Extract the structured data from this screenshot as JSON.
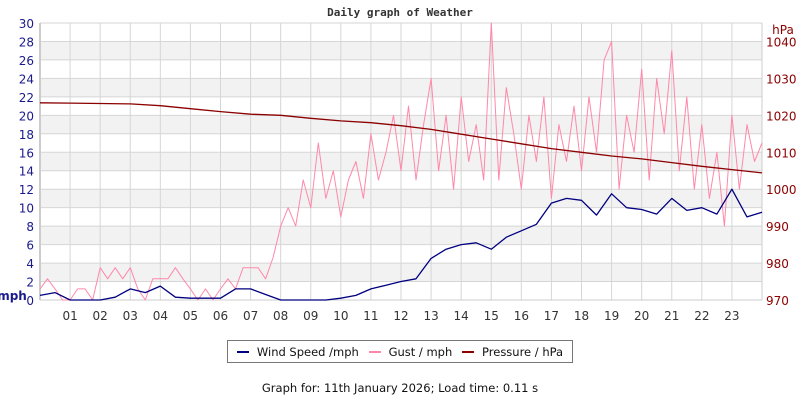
{
  "chart_data": {
    "type": "line",
    "title": "Daily graph of Weather",
    "xlabel": "",
    "ylabel_left": "mph",
    "ylabel_right": "hPa",
    "x_ticks": [
      "01",
      "02",
      "03",
      "04",
      "05",
      "06",
      "07",
      "08",
      "09",
      "10",
      "11",
      "12",
      "13",
      "14",
      "15",
      "16",
      "17",
      "18",
      "19",
      "20",
      "21",
      "22",
      "23"
    ],
    "xlim_hours": [
      0,
      24
    ],
    "ylim_left": [
      0,
      30
    ],
    "y_ticks_left": [
      "0",
      "2",
      "4",
      "6",
      "8",
      "10",
      "12",
      "14",
      "16",
      "18",
      "20",
      "22",
      "24",
      "26",
      "28",
      "30"
    ],
    "ylim_right": [
      970,
      1045
    ],
    "y_ticks_right": [
      "970",
      "980",
      "990",
      "1000",
      "1010",
      "1020",
      "1030",
      "1040"
    ],
    "grid": true,
    "legend_placement": "bottom",
    "series": [
      {
        "name": "Wind Speed /mph",
        "color": "#000080",
        "axis": "left",
        "x_step_hours": 0.5,
        "values": [
          0.5,
          0.8,
          0,
          0,
          0,
          0.3,
          1.2,
          0.8,
          1.5,
          0.3,
          0.2,
          0.2,
          0.2,
          1.2,
          1.2,
          0.6,
          0,
          0,
          0,
          0,
          0.2,
          0.5,
          1.2,
          1.6,
          2,
          2.3,
          4.5,
          5.5,
          6,
          6.2,
          5.5,
          6.8,
          7.5,
          8.2,
          10.5,
          11,
          10.8,
          9.2,
          11.5,
          10,
          9.8,
          9.3,
          11,
          9.7,
          10,
          9.3,
          12,
          9,
          9.5
        ]
      },
      {
        "name": "Gust / mph",
        "color": "#ff88aa",
        "axis": "left",
        "x_step_hours": 0.25,
        "values": [
          1.2,
          2.3,
          1.2,
          0,
          0,
          1.2,
          1.2,
          0,
          3.5,
          2.3,
          3.5,
          2.3,
          3.5,
          1.2,
          0,
          2.3,
          2.3,
          2.3,
          3.5,
          2.3,
          1.2,
          0,
          1.2,
          0,
          1.2,
          2.3,
          1.2,
          3.5,
          3.5,
          3.5,
          2.3,
          4.6,
          8,
          10,
          8,
          13,
          10,
          17,
          11,
          14,
          9,
          13,
          15,
          11,
          18,
          13,
          16,
          20,
          14,
          21,
          13,
          19,
          24,
          14,
          20,
          12,
          22,
          15,
          19,
          13,
          30,
          13,
          23,
          18,
          12,
          20,
          15,
          22,
          11,
          19,
          15,
          21,
          14,
          22,
          16,
          26,
          28,
          12,
          20,
          16,
          25,
          13,
          24,
          18,
          27,
          14,
          22,
          12,
          19,
          11,
          16,
          8,
          20,
          12,
          19,
          15,
          17
        ]
      },
      {
        "name": "Pressure / hPa",
        "color": "#8b0000",
        "axis": "right",
        "x_step_hours": 1,
        "values": [
          1023.4,
          1023.3,
          1023.2,
          1023.1,
          1022.6,
          1021.8,
          1021,
          1020.3,
          1020,
          1019.2,
          1018.5,
          1018,
          1017.2,
          1016.2,
          1014.9,
          1013.6,
          1012.3,
          1011,
          1010,
          1009,
          1008.2,
          1007.2,
          1006.2,
          1005.3,
          1004.4
        ]
      }
    ]
  },
  "footer": "Graph for: 11th January 2026; Load time: 0.11 s"
}
